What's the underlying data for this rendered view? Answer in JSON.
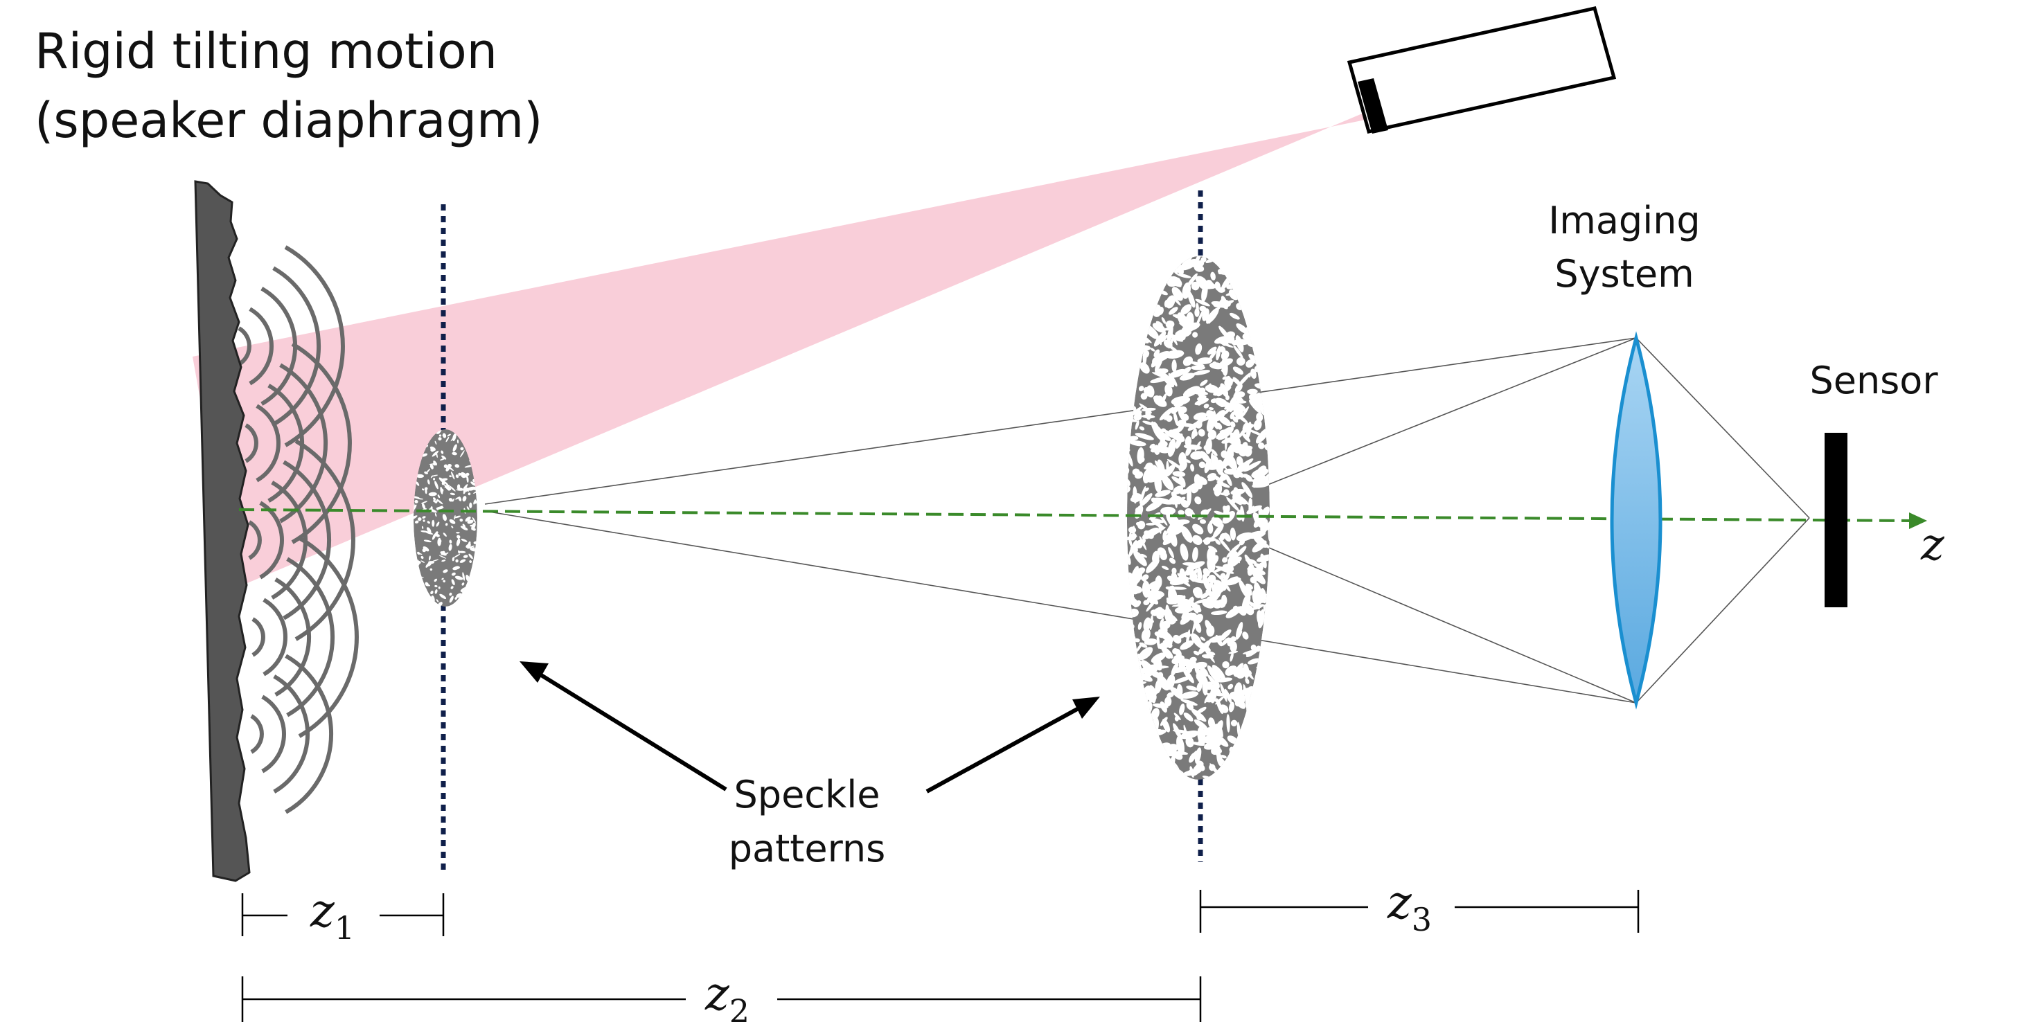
{
  "title": {
    "line1": "Rigid tilting motion",
    "line2": "(speaker diaphragm)"
  },
  "labels": {
    "imaging_line1": "Imaging",
    "imaging_line2": "System",
    "sensor": "Sensor",
    "speckle_line1": "Speckle",
    "speckle_line2": "patterns",
    "axis": "z",
    "z1": {
      "var": "z",
      "sub": "1"
    },
    "z2": {
      "var": "z",
      "sub": "2"
    },
    "z3": {
      "var": "z",
      "sub": "3"
    }
  },
  "colors": {
    "laser_beam": "#f9cbd7",
    "optical_axis": "#3a8a2a",
    "plane_marker": "#0f1f4a",
    "diaphragm": "#555555",
    "speckle": "#7a7a7a",
    "lens_fill": "#7bbce8",
    "lens_edge": "#1a8fd0",
    "sensor": "#000000",
    "waves": "#6a6a6a"
  },
  "icons": {
    "laser": "laser-source-icon",
    "diaphragm": "speaker-diaphragm-icon",
    "lens": "lens-icon",
    "sensor": "sensor-icon"
  }
}
